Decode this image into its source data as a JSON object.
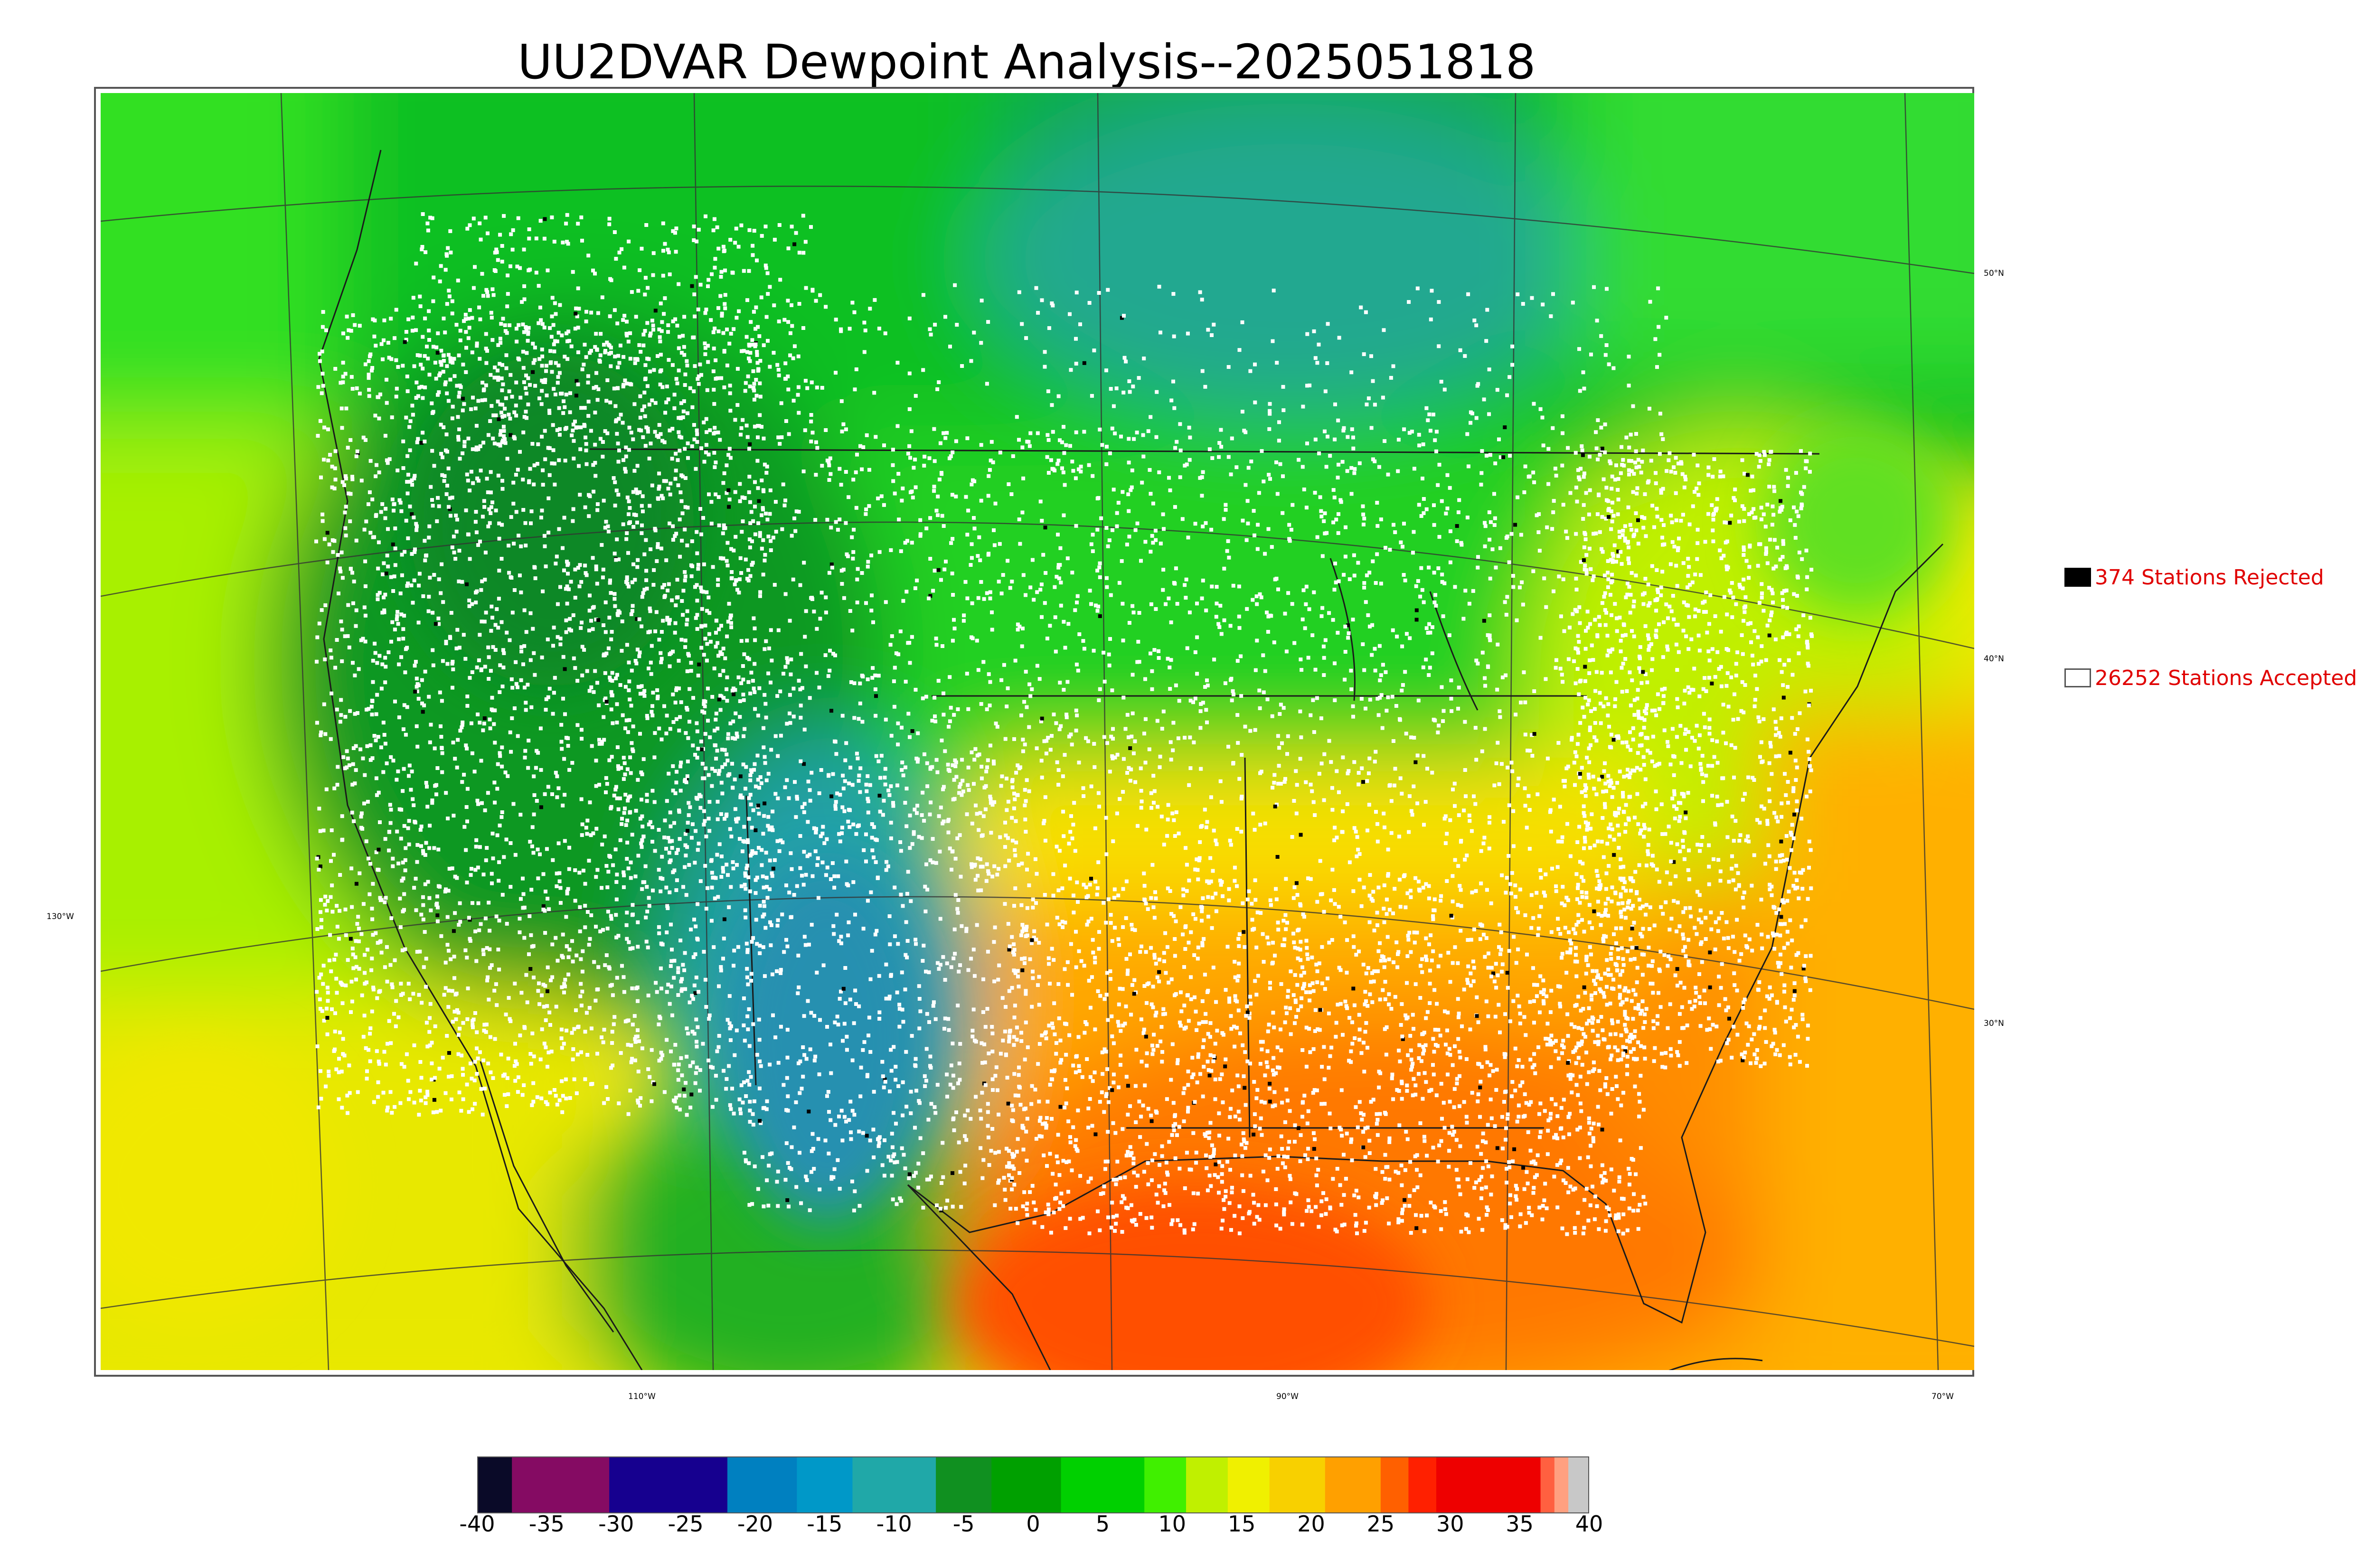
{
  "title": "UU2DVAR Dewpoint Analysis--2025051818",
  "map": {
    "lat_labels": [
      {
        "text": "50°N"
      },
      {
        "text": "40°N"
      },
      {
        "text": "30°N"
      }
    ],
    "lon_labels": [
      {
        "text": "130°W"
      },
      {
        "text": "110°W"
      },
      {
        "text": "90°W"
      },
      {
        "text": "70°W"
      }
    ]
  },
  "legend": {
    "rejected": {
      "label": "374 Stations Rejected",
      "count": 374,
      "swatch_color": "#000000"
    },
    "accepted": {
      "label": "26252 Stations Accepted",
      "count": 26252,
      "swatch_color": "#ffffff"
    },
    "text_color": "#e00000"
  },
  "colorbar": {
    "ticks": [
      "-40",
      "-35",
      "-30",
      "-25",
      "-20",
      "-15",
      "-10",
      "-5",
      "0",
      "5",
      "10",
      "15",
      "20",
      "25",
      "30",
      "35",
      "40"
    ],
    "min": -40,
    "max": 40,
    "segments": [
      {
        "from": -40,
        "to": -37.5,
        "color": "#0a0a28"
      },
      {
        "from": -37.5,
        "to": -30.5,
        "color": "#850b63"
      },
      {
        "from": -30.5,
        "to": -22,
        "color": "#16008f"
      },
      {
        "from": -22,
        "to": -17,
        "color": "#0080c0"
      },
      {
        "from": -17,
        "to": -13,
        "color": "#0098c8"
      },
      {
        "from": -13,
        "to": -7,
        "color": "#20a8a8"
      },
      {
        "from": -7,
        "to": -3,
        "color": "#109020"
      },
      {
        "from": -3,
        "to": 2,
        "color": "#00a000"
      },
      {
        "from": 2,
        "to": 8,
        "color": "#00d000"
      },
      {
        "from": 8,
        "to": 11,
        "color": "#40f000"
      },
      {
        "from": 11,
        "to": 14,
        "color": "#c0f000"
      },
      {
        "from": 14,
        "to": 17,
        "color": "#f0f000"
      },
      {
        "from": 17,
        "to": 21,
        "color": "#f8d000"
      },
      {
        "from": 21,
        "to": 25,
        "color": "#ffa000"
      },
      {
        "from": 25,
        "to": 27,
        "color": "#ff6000"
      },
      {
        "from": 27,
        "to": 29,
        "color": "#ff2000"
      },
      {
        "from": 29,
        "to": 36.5,
        "color": "#ee0000"
      },
      {
        "from": 36.5,
        "to": 37.5,
        "color": "#ff6040"
      },
      {
        "from": 37.5,
        "to": 38.5,
        "color": "#ffa080"
      },
      {
        "from": 38.5,
        "to": 40,
        "color": "#c8c8c8"
      }
    ]
  },
  "colors": {
    "station_accepted": "#ffffff",
    "station_rejected": "#000000",
    "coastline": "#1a1a1a",
    "gridline": "#333333"
  }
}
